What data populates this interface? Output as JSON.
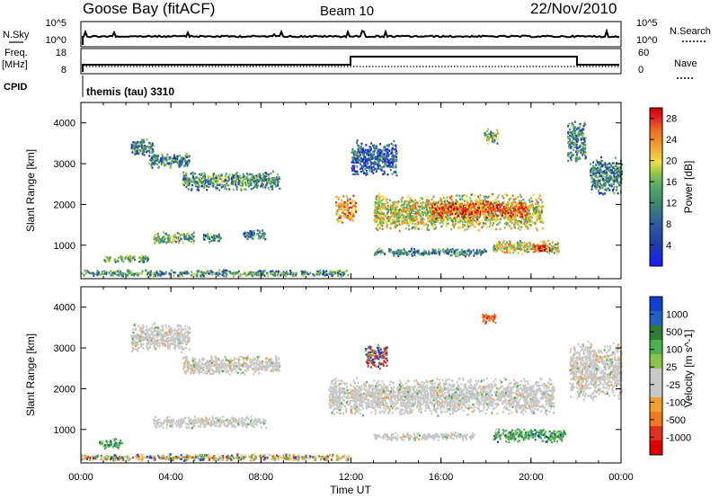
{
  "header": {
    "station": "Goose Bay (fitACF)",
    "beam": "Beam 10",
    "date": "22/Nov/2010"
  },
  "aux_panels": {
    "nsky_label": "N.Sky",
    "nsky_ticks": [
      "10^5",
      "10^0"
    ],
    "nsearch_label": "N.Search",
    "nsearch_ticks": [
      "10^5",
      "10^0"
    ],
    "freq_label_1": "Freq.",
    "freq_label_2": "[MHz]",
    "freq_ticks": [
      "18",
      "8"
    ],
    "nave_label": "Nave",
    "nave_ticks": [
      "60",
      "0"
    ],
    "cpid_label": "CPID",
    "cpid_text": "themis (tau) 3310"
  },
  "colors": {
    "power_scale": [
      "#1a1aff",
      "#1e3ea8",
      "#2f5fa0",
      "#3b8a6a",
      "#55a86a",
      "#8bc34a",
      "#f0e040",
      "#f0a030",
      "#f06a20",
      "#e02020",
      "#d00000"
    ],
    "velocity_scale": [
      "#1040d0",
      "#2060c0",
      "#2e7d32",
      "#4caf50",
      "#8bc34a",
      "#c8c8c8",
      "#c8c8c8",
      "#f0a030",
      "#f07a20",
      "#e03020",
      "#e00000"
    ],
    "ground_scatter": "#c8c8c8"
  },
  "chart_data": [
    {
      "type": "heatmap",
      "panel": "power",
      "xlabel": "",
      "ylabel": "Slant Range [km]",
      "xlim": [
        0,
        24
      ],
      "ylim": [
        180,
        4500
      ],
      "x_ticks": [
        "00:00",
        "04:00",
        "08:00",
        "12:00",
        "16:00",
        "20:00",
        "00:00"
      ],
      "y_ticks": [
        "1000",
        "2000",
        "3000",
        "4000"
      ],
      "colorbar_label": "Power [dB]",
      "colorbar_ticks": [
        "28",
        "24",
        "20",
        "16",
        "12",
        "8",
        "4"
      ],
      "value_range": [
        0,
        30
      ],
      "regions": [
        {
          "t0": 0.0,
          "t1": 11.9,
          "r0": 250,
          "r1": 420,
          "level": 0.35
        },
        {
          "t0": 1.0,
          "t1": 3.0,
          "r0": 600,
          "r1": 800,
          "level": 0.4
        },
        {
          "t0": 2.2,
          "t1": 3.2,
          "r0": 3200,
          "r1": 3650,
          "level": 0.3
        },
        {
          "t0": 3.0,
          "t1": 4.8,
          "r0": 2900,
          "r1": 3300,
          "level": 0.3
        },
        {
          "t0": 4.5,
          "t1": 8.8,
          "r0": 2350,
          "r1": 2850,
          "level": 0.35
        },
        {
          "t0": 3.2,
          "t1": 5.0,
          "r0": 1050,
          "r1": 1350,
          "level": 0.45
        },
        {
          "t0": 5.4,
          "t1": 6.2,
          "r0": 1100,
          "r1": 1350,
          "level": 0.35
        },
        {
          "t0": 7.2,
          "t1": 8.2,
          "r0": 1150,
          "r1": 1400,
          "level": 0.3
        },
        {
          "t0": 11.3,
          "t1": 12.2,
          "r0": 1550,
          "r1": 2250,
          "level": 0.7
        },
        {
          "t0": 12.0,
          "t1": 14.0,
          "r0": 2700,
          "r1": 3600,
          "level": 0.2
        },
        {
          "t0": 13.0,
          "t1": 20.5,
          "r0": 1350,
          "r1": 2300,
          "level": 0.55
        },
        {
          "t0": 15.5,
          "t1": 19.8,
          "r0": 1650,
          "r1": 2100,
          "level": 0.8
        },
        {
          "t0": 13.0,
          "t1": 18.0,
          "r0": 750,
          "r1": 950,
          "level": 0.3
        },
        {
          "t0": 18.3,
          "t1": 21.2,
          "r0": 800,
          "r1": 1150,
          "level": 0.55
        },
        {
          "t0": 20.0,
          "t1": 20.8,
          "r0": 850,
          "r1": 1050,
          "level": 0.85
        },
        {
          "t0": 17.9,
          "t1": 18.5,
          "r0": 3500,
          "r1": 3900,
          "level": 0.45
        },
        {
          "t0": 21.6,
          "t1": 22.4,
          "r0": 3000,
          "r1": 4100,
          "level": 0.3
        },
        {
          "t0": 22.6,
          "t1": 24.0,
          "r0": 2200,
          "r1": 3200,
          "level": 0.3
        }
      ]
    },
    {
      "type": "heatmap",
      "panel": "velocity",
      "xlabel": "Time UT",
      "ylabel": "Slant Range [km]",
      "xlim": [
        0,
        24
      ],
      "ylim": [
        180,
        4500
      ],
      "x_ticks": [
        "00:00",
        "04:00",
        "08:00",
        "12:00",
        "16:00",
        "20:00",
        "00:00"
      ],
      "y_ticks": [
        "1000",
        "2000",
        "3000",
        "4000"
      ],
      "colorbar_label": "Velocity [m s^-1]",
      "colorbar_ticks": [
        "1000",
        "500",
        "100",
        "25",
        "-25",
        "-100",
        "-500",
        "-1000"
      ],
      "value_range": [
        -1000,
        1000
      ],
      "regions": [
        {
          "t0": 0.0,
          "t1": 11.9,
          "r0": 250,
          "r1": 420,
          "kind": "mixed"
        },
        {
          "t0": 0.8,
          "t1": 1.8,
          "r0": 550,
          "r1": 800,
          "kind": "green"
        },
        {
          "t0": 2.2,
          "t1": 4.8,
          "r0": 2900,
          "r1": 3650,
          "kind": "gs"
        },
        {
          "t0": 4.5,
          "t1": 8.8,
          "r0": 2350,
          "r1": 2850,
          "kind": "gs"
        },
        {
          "t0": 3.2,
          "t1": 8.2,
          "r0": 1050,
          "r1": 1350,
          "kind": "gs"
        },
        {
          "t0": 11.0,
          "t1": 21.0,
          "r0": 1350,
          "r1": 2300,
          "kind": "gs"
        },
        {
          "t0": 12.6,
          "t1": 13.6,
          "r0": 2500,
          "r1": 3100,
          "kind": "red"
        },
        {
          "t0": 17.8,
          "t1": 18.4,
          "r0": 3600,
          "r1": 3900,
          "kind": "orange"
        },
        {
          "t0": 18.3,
          "t1": 21.5,
          "r0": 700,
          "r1": 1050,
          "kind": "green"
        },
        {
          "t0": 21.7,
          "t1": 24.0,
          "r0": 1700,
          "r1": 3200,
          "kind": "gs"
        },
        {
          "t0": 13.0,
          "t1": 17.5,
          "r0": 750,
          "r1": 950,
          "kind": "gs"
        }
      ]
    }
  ]
}
